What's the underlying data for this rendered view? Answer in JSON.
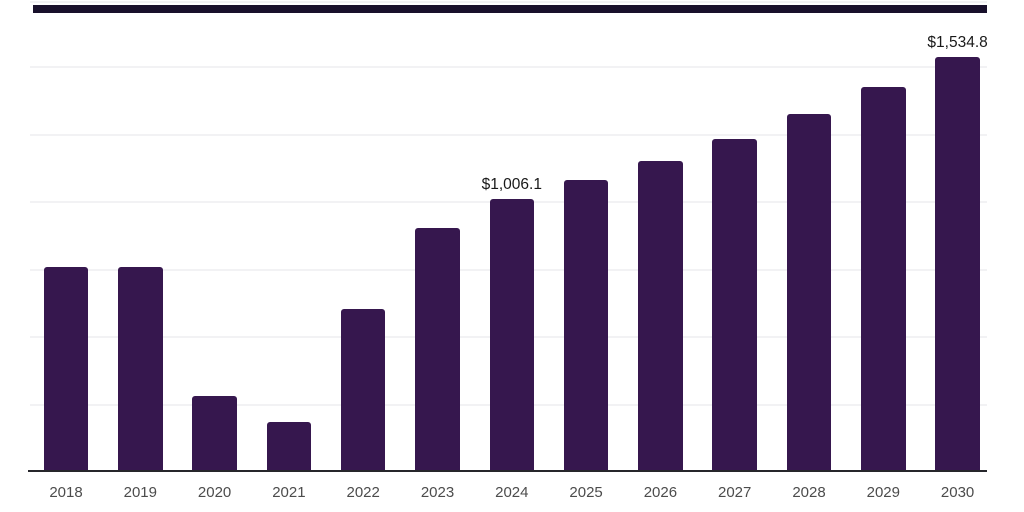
{
  "chart_data": {
    "type": "bar",
    "title": "",
    "xlabel": "",
    "ylabel": "",
    "categories": [
      "2018",
      "2019",
      "2020",
      "2021",
      "2022",
      "2023",
      "2024",
      "2025",
      "2026",
      "2027",
      "2028",
      "2029",
      "2030"
    ],
    "values": [
      755,
      755,
      277,
      181,
      601,
      901,
      1006.1,
      1077,
      1148,
      1231,
      1322,
      1422,
      1534.8
    ],
    "labeled_points": [
      {
        "category": "2024",
        "text": "$1,006.1"
      },
      {
        "category": "2030",
        "text": "$1,534.8"
      }
    ],
    "ylim": [
      0,
      1750
    ],
    "grid_step": 250,
    "grid": "horizontal-only",
    "legend": "none",
    "colors": {
      "bar": "#36174e",
      "top_border": "#18102b",
      "axis_line": "#26262b",
      "gridline": "#f2f2f4",
      "tick_label": "#4c4c4c",
      "value_label": "#191919",
      "background": "#ffffff"
    }
  }
}
